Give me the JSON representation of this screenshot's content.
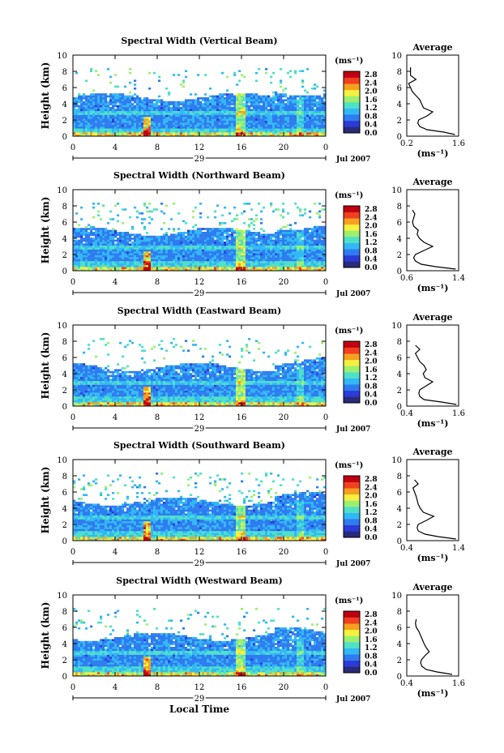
{
  "figure": {
    "panel_titles": [
      "Spectral Width (Vertical Beam)",
      "Spectral Width (Northward Beam)",
      "Spectral Width (Eastward Beam)",
      "Spectral Width (Southward Beam)",
      "Spectral Width (Westward Beam)"
    ],
    "ylabel": "Height (km)",
    "xlabel": "Local Time",
    "date_day": "29",
    "date_label": "Jul 2007",
    "colorbar_unit": "(ms⁻¹)",
    "colorbar_ticks": [
      "2.8",
      "2.4",
      "2.0",
      "1.6",
      "1.2",
      "0.8",
      "0.4",
      "0.0"
    ],
    "avg_title": "Average",
    "avg_unit": "(ms⁻¹)",
    "x_ticks": [
      "0",
      "4",
      "8",
      "12",
      "16",
      "20",
      "0"
    ],
    "y_ticks": [
      "0",
      "2",
      "4",
      "6",
      "8",
      "10"
    ],
    "colors": [
      "#2a2a7a",
      "#2b3bd8",
      "#2f7bf0",
      "#32b8f5",
      "#4fe0c8",
      "#9cf070",
      "#f5f040",
      "#f5a020",
      "#f04020",
      "#c00010"
    ]
  },
  "chart_data": [
    {
      "type": "heatmap",
      "title": "Spectral Width (Vertical Beam)",
      "xlabel": "Local Time",
      "ylabel": "Height (km)",
      "xlim": [
        0,
        24
      ],
      "ylim": [
        0,
        10
      ],
      "colorbar": [
        0,
        2.8
      ],
      "avg_profile": {
        "title": "Average",
        "xticks": [
          "0.2",
          "1.6"
        ],
        "xlim": [
          0.2,
          1.6
        ],
        "ylim": [
          0,
          10
        ],
        "heights": [
          0.2,
          0.5,
          0.8,
          1.2,
          1.6,
          2.0,
          2.5,
          3.0,
          3.5,
          4.0,
          4.5,
          5.0,
          5.5,
          6.0,
          6.5,
          7.0,
          7.5,
          8.0,
          8.5
        ],
        "values": [
          1.5,
          1.2,
          0.75,
          0.55,
          0.5,
          0.52,
          0.75,
          0.9,
          0.65,
          0.6,
          0.55,
          0.45,
          0.35,
          0.3,
          0.25,
          0.45,
          0.3,
          0.3,
          0.3
        ]
      }
    },
    {
      "type": "heatmap",
      "title": "Spectral Width (Northward Beam)",
      "xlabel": "Local Time",
      "ylabel": "Height (km)",
      "xlim": [
        0,
        24
      ],
      "ylim": [
        0,
        10
      ],
      "colorbar": [
        0,
        2.8
      ],
      "avg_profile": {
        "title": "Average",
        "xticks": [
          "0.6",
          "1.4"
        ],
        "xlim": [
          0.5,
          1.4
        ],
        "ylim": [
          0,
          10
        ],
        "heights": [
          0.2,
          0.5,
          0.8,
          1.2,
          1.6,
          2.0,
          2.5,
          3.0,
          3.5,
          4.0,
          4.5,
          5.0,
          5.5,
          6.0,
          6.5,
          7.0,
          7.5
        ],
        "values": [
          1.35,
          1.0,
          0.75,
          0.65,
          0.62,
          0.65,
          0.8,
          0.95,
          0.8,
          0.72,
          0.68,
          0.7,
          0.62,
          0.6,
          0.62,
          0.64,
          0.6
        ]
      }
    },
    {
      "type": "heatmap",
      "title": "Spectral Width (Eastward Beam)",
      "xlabel": "Local Time",
      "ylabel": "Height (km)",
      "xlim": [
        0,
        24
      ],
      "ylim": [
        0,
        10
      ],
      "colorbar": [
        0,
        2.8
      ],
      "avg_profile": {
        "title": "Average",
        "xticks": [
          "0.4",
          "1.6"
        ],
        "xlim": [
          0.4,
          1.6
        ],
        "ylim": [
          0,
          10
        ],
        "heights": [
          0.2,
          0.5,
          0.8,
          1.2,
          1.6,
          2.0,
          2.5,
          3.0,
          3.5,
          4.0,
          4.5,
          5.0,
          5.5,
          6.0,
          6.5,
          7.0,
          7.5
        ],
        "values": [
          1.55,
          1.2,
          0.8,
          0.7,
          0.68,
          0.7,
          0.85,
          1.0,
          0.82,
          0.78,
          0.85,
          0.8,
          0.7,
          0.65,
          0.6,
          0.7,
          0.6
        ]
      }
    },
    {
      "type": "heatmap",
      "title": "Spectral Width (Southward Beam)",
      "xlabel": "Local Time",
      "ylabel": "Height (km)",
      "xlim": [
        0,
        24
      ],
      "ylim": [
        0,
        10
      ],
      "colorbar": [
        0,
        2.8
      ],
      "avg_profile": {
        "title": "Average",
        "xticks": [
          "0.4",
          "1.4"
        ],
        "xlim": [
          0.4,
          1.4
        ],
        "ylim": [
          0,
          10
        ],
        "heights": [
          0.2,
          0.5,
          0.8,
          1.2,
          1.6,
          2.0,
          2.5,
          3.0,
          3.5,
          4.0,
          4.5,
          5.0,
          5.5,
          6.0,
          6.5,
          7.0,
          7.5
        ],
        "values": [
          1.35,
          1.0,
          0.75,
          0.62,
          0.6,
          0.62,
          0.78,
          0.92,
          0.72,
          0.66,
          0.62,
          0.6,
          0.58,
          0.55,
          0.52,
          0.62,
          0.55
        ]
      }
    },
    {
      "type": "heatmap",
      "title": "Spectral Width (Westward Beam)",
      "xlabel": "Local Time",
      "ylabel": "Height (km)",
      "xlim": [
        0,
        24
      ],
      "ylim": [
        0,
        10
      ],
      "colorbar": [
        0,
        2.8
      ],
      "avg_profile": {
        "title": "Average",
        "xticks": [
          "0.4",
          "1.6"
        ],
        "xlim": [
          0.4,
          1.6
        ],
        "ylim": [
          0,
          10
        ],
        "heights": [
          0.2,
          0.5,
          0.8,
          1.2,
          1.6,
          2.0,
          2.5,
          3.0,
          3.5,
          4.0,
          4.5,
          5.0,
          5.5,
          6.0,
          6.5,
          7.0
        ],
        "values": [
          1.45,
          1.1,
          0.85,
          0.75,
          0.72,
          0.74,
          0.82,
          0.92,
          0.85,
          0.8,
          0.76,
          0.72,
          0.68,
          0.62,
          0.6,
          0.62
        ]
      }
    }
  ]
}
